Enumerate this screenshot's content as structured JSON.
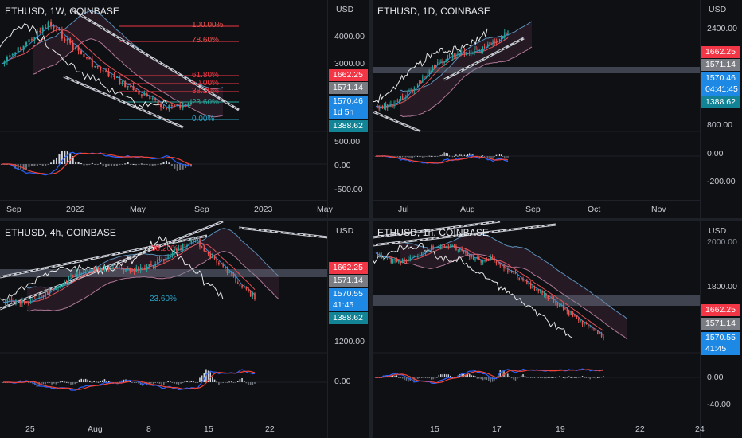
{
  "colors": {
    "up": "#26a69a",
    "down": "#ef5350",
    "bg": "#0f1014",
    "red": "#f23645",
    "grey": "#7a7c84",
    "blue": "#1e88e5",
    "teal": "#138496",
    "macd": "#2962ff",
    "signal": "#f44336"
  },
  "panels": [
    {
      "title": "ETHUSD, 1W, COINBASE",
      "currency": "USD",
      "price_labels": [
        "4000.00",
        "3000.00"
      ],
      "tags": [
        "1662.25",
        "1571.14",
        "1570.46",
        "1d 5h",
        "1388.62"
      ],
      "osc_labels": [
        "500.00",
        "0.00",
        "-500.00"
      ],
      "x_labels": [
        "Sep",
        "2022",
        "May",
        "Sep",
        "2023",
        "May"
      ],
      "fib_labels": [
        "100.00%",
        "78.60%",
        "61.80%",
        "50.00%",
        "38.20%",
        "23.60%",
        "0.00%"
      ]
    },
    {
      "title": "ETHUSD, 1D, COINBASE",
      "currency": "USD",
      "price_labels": [
        "2400.00",
        "800.00"
      ],
      "tags": [
        "1662.25",
        "1571.14",
        "1570.46",
        "04:41:45",
        "1388.62"
      ],
      "osc_labels": [
        "0.00",
        "-200.00"
      ],
      "x_labels": [
        "Jul",
        "Aug",
        "Sep",
        "Oct",
        "Nov"
      ]
    },
    {
      "title": "ETHUSD, 4h, COINBASE",
      "currency": "USD",
      "price_labels": [
        "1200.00"
      ],
      "tags": [
        "1662.25",
        "1571.14",
        "1570.55",
        "41:45",
        "1388.62"
      ],
      "osc_labels": [
        "0.00"
      ],
      "x_labels": [
        "25",
        "Aug",
        "8",
        "15",
        "22"
      ],
      "fib_labels": [
        "38.20%",
        "23.60%"
      ]
    },
    {
      "title": "ETHUSD, 1h, COINBASE",
      "currency": "USD",
      "price_labels": [
        "2000.00",
        "1800.00"
      ],
      "tags": [
        "1662.25",
        "1571.14",
        "1570.55",
        "41:45"
      ],
      "osc_labels": [
        "0.00",
        "-40.00"
      ],
      "x_labels": [
        "15",
        "17",
        "19",
        "22",
        "24"
      ]
    }
  ]
}
